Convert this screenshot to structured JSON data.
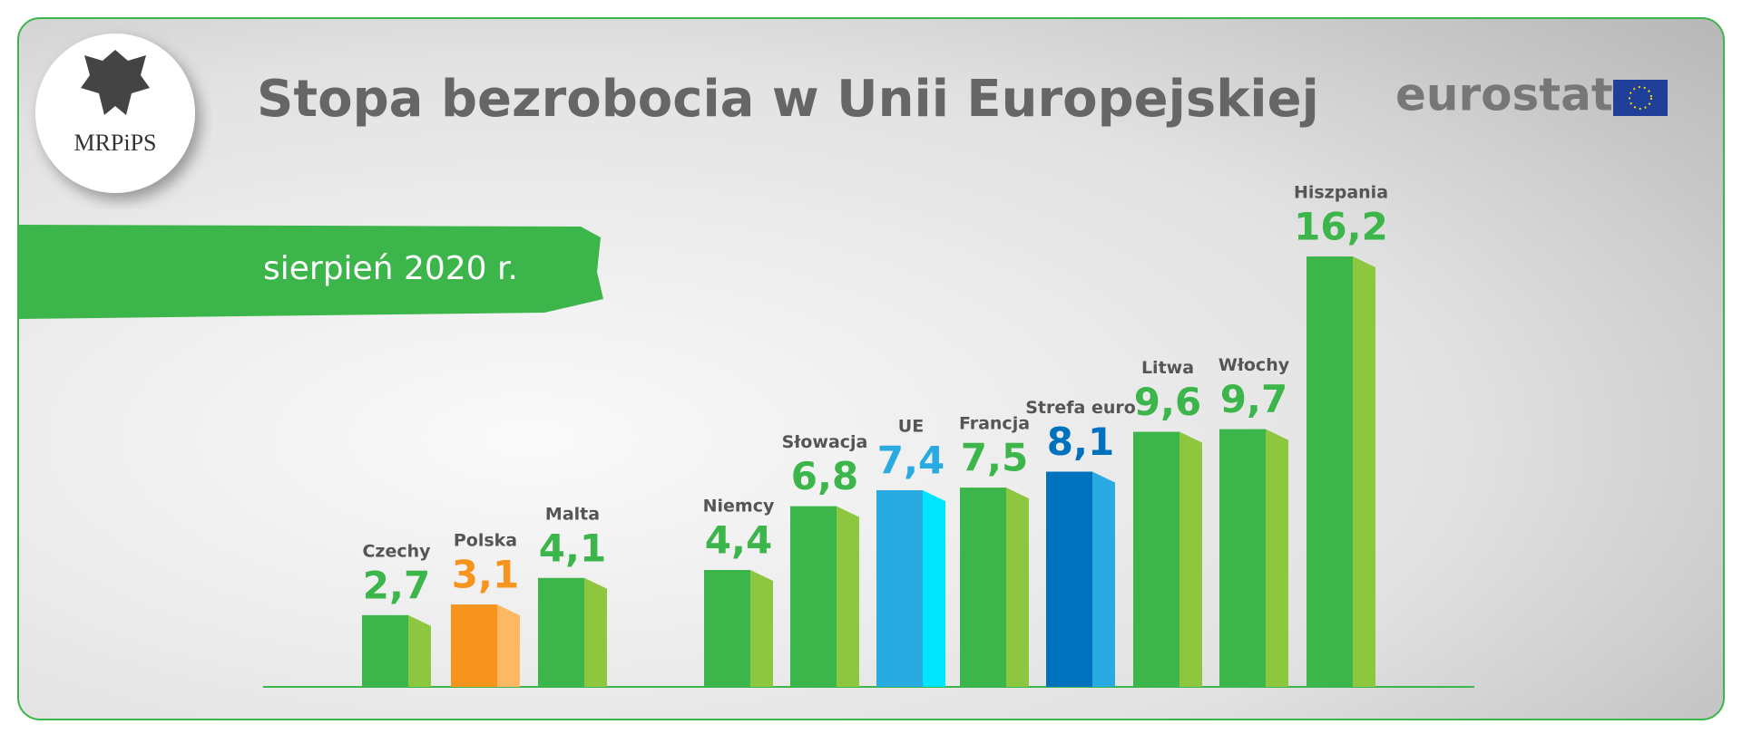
{
  "header": {
    "logo": "MRPiPS",
    "source": "eurostat"
  },
  "chart_data": {
    "type": "bar",
    "title": "Stopa bezrobocia w Unii Europejskiej",
    "subtitle": "sierpień 2020 r.",
    "categories": [
      "Czechy",
      "Polska",
      "Malta",
      "Niemcy",
      "Słowacja",
      "UE",
      "Francja",
      "Strefa euro",
      "Litwa",
      "Włochy",
      "Hiszpania"
    ],
    "values": [
      2.7,
      3.1,
      4.1,
      4.4,
      6.8,
      7.4,
      7.5,
      8.1,
      9.6,
      9.7,
      16.2
    ],
    "value_labels": [
      "2,7",
      "3,1",
      "4,1",
      "4,4",
      "6,8",
      "7,4",
      "7,5",
      "8,1",
      "9,6",
      "9,7",
      "16,2"
    ],
    "colors": [
      "#3cb54a",
      "#f7941d",
      "#3cb54a",
      "#3cb54a",
      "#3cb54a",
      "#29abe2",
      "#3cb54a",
      "#0071bc",
      "#3cb54a",
      "#3cb54a",
      "#3cb54a"
    ],
    "side_colors": [
      "#8dc63f",
      "#fdb863",
      "#8dc63f",
      "#8dc63f",
      "#8dc63f",
      "#00e5ff",
      "#8dc63f",
      "#29abe2",
      "#8dc63f",
      "#8dc63f",
      "#8dc63f"
    ]
  }
}
